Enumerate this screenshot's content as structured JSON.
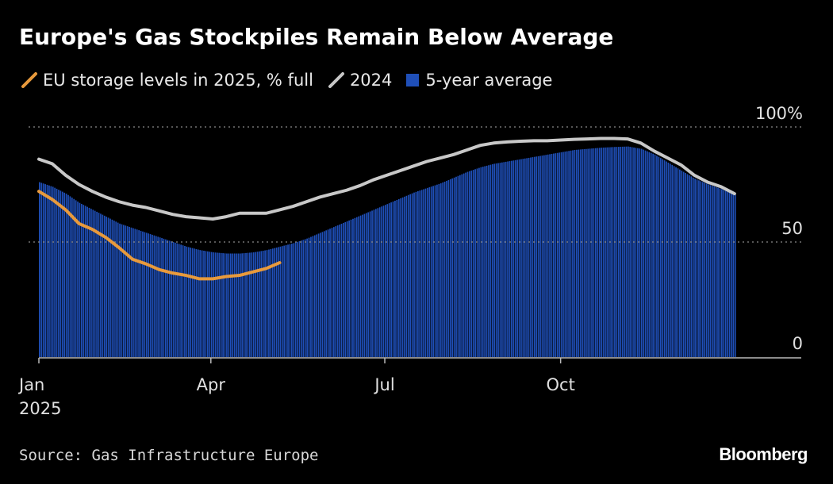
{
  "title": "Europe's Gas Stockpiles Remain Below Average",
  "source": "Source: Gas Infrastructure Europe",
  "brand": "Bloomberg",
  "colors": {
    "background": "#000000",
    "eu2025": "#e89a3c",
    "y2024": "#c8c8c8",
    "avg5": "#1f4fb8",
    "grid": "#8a8a8a",
    "axis": "#bbbbbb"
  },
  "legend": [
    {
      "label": "EU storage levels in 2025, % full",
      "icon": "orange-line-icon"
    },
    {
      "label": "2024",
      "icon": "gray-line-icon"
    },
    {
      "label": "5-year average",
      "icon": "blue-square-icon"
    }
  ],
  "chart_data": {
    "type": "area",
    "xlim": [
      0,
      365
    ],
    "ylim": [
      0,
      100
    ],
    "x_ticks": [
      {
        "day": 0,
        "label": "Jan"
      },
      {
        "day": 90,
        "label": "Apr"
      },
      {
        "day": 181,
        "label": "Jul"
      },
      {
        "day": 273,
        "label": "Oct"
      }
    ],
    "x_year_label": "2025",
    "y_ticks": [
      {
        "value": 0,
        "label": "0"
      },
      {
        "value": 50,
        "label": "50"
      },
      {
        "value": 100,
        "label": "100%"
      }
    ],
    "grid": "dotted horizontal at 50 and 100",
    "series": [
      {
        "name": "5-year average",
        "kind": "area",
        "x": [
          0,
          7,
          14,
          21,
          28,
          35,
          42,
          49,
          56,
          63,
          70,
          77,
          84,
          91,
          98,
          105,
          112,
          119,
          126,
          133,
          140,
          147,
          154,
          161,
          168,
          175,
          182,
          189,
          196,
          203,
          210,
          217,
          224,
          231,
          238,
          245,
          252,
          259,
          266,
          273,
          280,
          287,
          294,
          301,
          308,
          315,
          322,
          329,
          336,
          343,
          350,
          357,
          364
        ],
        "values": [
          76,
          74,
          71,
          67,
          64,
          61,
          58,
          56,
          54,
          52,
          50,
          48,
          46.5,
          45.5,
          45,
          45,
          45.5,
          46.5,
          48,
          49.5,
          51.5,
          54,
          56.5,
          59,
          61.5,
          64,
          66.5,
          69,
          71.5,
          73.5,
          75.5,
          78,
          80.5,
          82.5,
          84,
          85,
          86,
          87,
          88,
          89,
          90,
          90.5,
          91,
          91.3,
          91.5,
          90.5,
          88,
          84.5,
          81,
          77.5,
          75,
          73,
          70.5
        ]
      },
      {
        "name": "2024",
        "kind": "line",
        "x": [
          0,
          7,
          14,
          21,
          28,
          35,
          42,
          49,
          56,
          63,
          70,
          77,
          84,
          91,
          98,
          105,
          112,
          119,
          126,
          133,
          140,
          147,
          154,
          161,
          168,
          175,
          182,
          189,
          196,
          203,
          210,
          217,
          224,
          231,
          238,
          245,
          252,
          259,
          266,
          273,
          280,
          287,
          294,
          301,
          308,
          315,
          322,
          329,
          336,
          343,
          350,
          357,
          364
        ],
        "values": [
          86,
          84,
          79,
          75,
          72,
          69.5,
          67.5,
          66,
          65,
          63.5,
          62,
          61,
          60.5,
          60,
          61,
          62.5,
          62.5,
          62.5,
          64,
          65.5,
          67.5,
          69.5,
          71,
          72.5,
          74.5,
          77,
          79,
          81,
          83,
          85,
          86.5,
          88,
          90,
          92,
          93,
          93.5,
          93.8,
          94,
          94,
          94.3,
          94.6,
          94.8,
          95,
          95,
          94.8,
          93,
          89.5,
          86.5,
          83.5,
          79,
          76,
          74,
          71
        ]
      },
      {
        "name": "EU storage levels in 2025, % full",
        "kind": "line",
        "x": [
          0,
          7,
          14,
          21,
          28,
          35,
          42,
          49,
          56,
          63,
          70,
          77,
          84,
          91,
          98,
          105,
          112,
          119,
          126
        ],
        "values": [
          72,
          68.5,
          64,
          58,
          55.5,
          52,
          47.5,
          42.5,
          40.5,
          38,
          36.5,
          35.5,
          34,
          34,
          35,
          35.5,
          37,
          38.5,
          41
        ]
      }
    ]
  }
}
